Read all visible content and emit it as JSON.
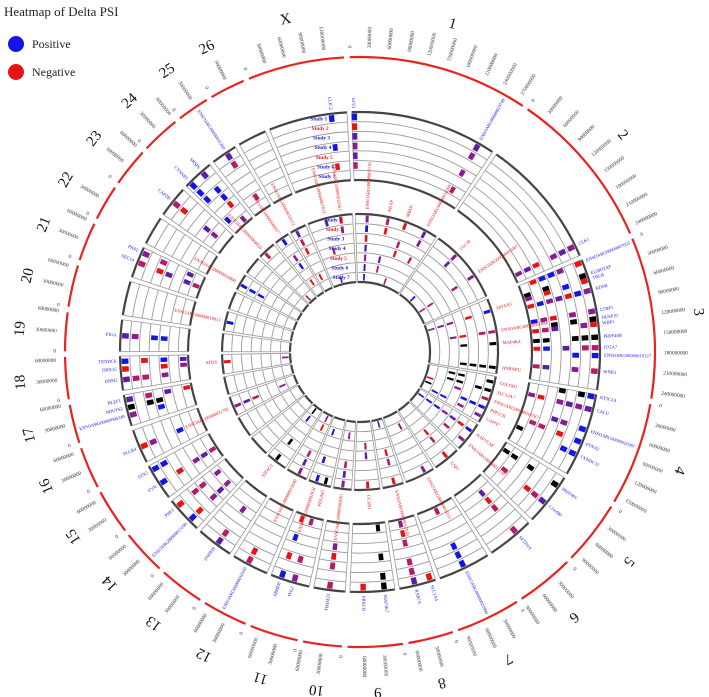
{
  "chart_data": {
    "type": "heatmap",
    "title": "Heatmap of Delta PSI",
    "legend": {
      "placement": "top-left",
      "entries": [
        {
          "label": "Positive",
          "color": "#1414e6"
        },
        {
          "label": "Negative",
          "color": "#e61414"
        }
      ]
    },
    "colors": {
      "ideogram": "#e8231f",
      "positive": "#1414e6",
      "negative": "#e61414",
      "mixed": "#8a1c8f"
    },
    "chromosomes": [
      {
        "name": "1",
        "length": 280000000,
        "ticks": [
          "0",
          "30000000",
          "60000000",
          "90000000",
          "120000000",
          "150000000",
          "180000000",
          "210000000",
          "240000000",
          "270000000"
        ]
      },
      {
        "name": "2",
        "length": 250000000,
        "ticks": [
          "0",
          "30000000",
          "60000000",
          "90000000",
          "120000000",
          "150000000",
          "180000000",
          "210000000",
          "240000000"
        ]
      },
      {
        "name": "3",
        "length": 250000000,
        "ticks": [
          "0",
          "30000000",
          "60000000",
          "90000000",
          "120000000",
          "150000000",
          "180000000",
          "210000000",
          "240000000"
        ]
      },
      {
        "name": "4",
        "length": 160000000,
        "ticks": [
          "0",
          "30000000",
          "60000000",
          "90000000",
          "120000000",
          "150000000"
        ]
      },
      {
        "name": "5",
        "length": 100000000,
        "ticks": [
          "0",
          "30000000",
          "60000000",
          "90000000"
        ]
      },
      {
        "name": "6",
        "length": 90000000,
        "ticks": [
          "0",
          "30000000",
          "60000000",
          "90000000"
        ]
      },
      {
        "name": "7",
        "length": 100000000,
        "ticks": [
          "0",
          "30000000",
          "60000000",
          "90000000"
        ]
      },
      {
        "name": "8",
        "length": 70000000,
        "ticks": [
          "0",
          "30000000",
          "60000000"
        ]
      },
      {
        "name": "9",
        "length": 85000000,
        "ticks": [
          "0",
          "30000000",
          "60000000"
        ]
      },
      {
        "name": "10",
        "length": 60000000,
        "ticks": [
          "0",
          "30000000",
          "60000000"
        ]
      },
      {
        "name": "11",
        "length": 75000000,
        "ticks": [
          "0",
          "30000000",
          "60000000"
        ]
      },
      {
        "name": "12",
        "length": 70000000,
        "ticks": [
          "0",
          "30000000",
          "60000000"
        ]
      },
      {
        "name": "13",
        "length": 70000000,
        "ticks": [
          "0",
          "30000000",
          "60000000"
        ]
      },
      {
        "name": "14",
        "length": 70000000,
        "ticks": [
          "0",
          "30000000",
          "60000000"
        ]
      },
      {
        "name": "15",
        "length": 70000000,
        "ticks": [
          "0",
          "30000000",
          "60000000"
        ]
      },
      {
        "name": "16",
        "length": 65000000,
        "ticks": [
          "0",
          "30000000",
          "60000000"
        ]
      },
      {
        "name": "17",
        "length": 60000000,
        "ticks": [
          "0",
          "30000000",
          "60000000"
        ]
      },
      {
        "name": "18",
        "length": 65000000,
        "ticks": [
          "0",
          "30000000",
          "60000000"
        ]
      },
      {
        "name": "19",
        "length": 60000000,
        "ticks": [
          "0",
          "30000000",
          "60000000"
        ]
      },
      {
        "name": "20",
        "length": 65000000,
        "ticks": [
          "0",
          "30000000",
          "60000000"
        ]
      },
      {
        "name": "21",
        "length": 60000000,
        "ticks": [
          "0",
          "30000000",
          "60000000"
        ]
      },
      {
        "name": "22",
        "length": 55000000,
        "ticks": [
          "0",
          "30000000"
        ]
      },
      {
        "name": "23",
        "length": 60000000,
        "ticks": [
          "0",
          "30000000",
          "60000000"
        ]
      },
      {
        "name": "24",
        "length": 60000000,
        "ticks": [
          "0",
          "30000000",
          "60000000"
        ]
      },
      {
        "name": "25",
        "length": 50000000,
        "ticks": [
          "0",
          "30000000"
        ]
      },
      {
        "name": "26",
        "length": 55000000,
        "ticks": [
          "0",
          "30000000"
        ]
      },
      {
        "name": "X",
        "length": 150000000,
        "ticks": [
          "0",
          "30000000",
          "60000000",
          "90000000",
          "120000000"
        ]
      }
    ],
    "tracks": [
      "Study 1",
      "Study 2",
      "Study 3",
      "Study 4",
      "Study 5",
      "Study 6",
      "Study 7"
    ],
    "track_label_colors": [
      "#1414e6",
      "#e61414",
      "#1414e6",
      "#1414e6",
      "#e61414",
      "#1414e6",
      "#1414e6"
    ],
    "outer_ring_genes": [
      {
        "chr": "X",
        "pos": 120000000,
        "label": "CLIC2"
      },
      {
        "chr": "1",
        "pos": 5000000,
        "label": "ULP1"
      },
      {
        "chr": "1",
        "pos": 250000000,
        "label": "ENSOARG00000019749"
      },
      {
        "chr": "2",
        "pos": 230000000,
        "label": "CLK1"
      },
      {
        "chr": "3",
        "pos": 5000000,
        "label": "ENSOARG00000007053"
      },
      {
        "chr": "3",
        "pos": 30000000,
        "label": "ELMO2AP"
      },
      {
        "chr": "3",
        "pos": 40000000,
        "label": "TBCB"
      },
      {
        "chr": "3",
        "pos": 60000000,
        "label": "KDSR"
      },
      {
        "chr": "3",
        "pos": 100000000,
        "label": "LTBP1"
      },
      {
        "chr": "3",
        "pos": 115000000,
        "label": "DUSP10"
      },
      {
        "chr": "3",
        "pos": 125000000,
        "label": "WBP1"
      },
      {
        "chr": "3",
        "pos": 150000000,
        "label": "PRPF40B"
      },
      {
        "chr": "3",
        "pos": 170000000,
        "label": "ITGA7"
      },
      {
        "chr": "3",
        "pos": 185000000,
        "label": "ENSOARG00000018127"
      },
      {
        "chr": "3",
        "pos": 215000000,
        "label": "WNK1"
      },
      {
        "chr": "4",
        "pos": 5000000,
        "label": "NT5C2A"
      },
      {
        "chr": "4",
        "pos": 30000000,
        "label": "CALU"
      },
      {
        "chr": "4",
        "pos": 70000000,
        "label": "ENSOARG00000020367"
      },
      {
        "chr": "4",
        "pos": 95000000,
        "label": "PTNA2"
      },
      {
        "chr": "4",
        "pos": 120000000,
        "label": "TXNDC12"
      },
      {
        "chr": "5",
        "pos": 20000000,
        "label": "PRPF40C"
      },
      {
        "chr": "5",
        "pos": 60000000,
        "label": "C1orf80"
      },
      {
        "chr": "6",
        "pos": 30000000,
        "label": "SETD1A"
      },
      {
        "chr": "7",
        "pos": 50000000,
        "label": "ENSOARG00000021990"
      },
      {
        "chr": "8",
        "pos": 10000000,
        "label": "SLC1A4"
      },
      {
        "chr": "8",
        "pos": 40000000,
        "label": "RAB7A"
      },
      {
        "chr": "9",
        "pos": 20000000,
        "label": "MAP3K7"
      },
      {
        "chr": "9",
        "pos": 60000000,
        "label": "PRKCB"
      },
      {
        "chr": "10",
        "pos": 30000000,
        "label": "TIMM23"
      },
      {
        "chr": "11",
        "pos": 30000000,
        "label": "TFG2"
      },
      {
        "chr": "11",
        "pos": 55000000,
        "label": "ABHD8"
      },
      {
        "chr": "12",
        "pos": 40000000,
        "label": "ENSOARG00000010160"
      },
      {
        "chr": "13",
        "pos": 30000000,
        "label": "ZNF839"
      },
      {
        "chr": "14",
        "pos": 20000000,
        "label": "ENSOARG00000015190"
      },
      {
        "chr": "14",
        "pos": 55000000,
        "label": "PHF3"
      },
      {
        "chr": "15",
        "pos": 30000000,
        "label": "FYN"
      },
      {
        "chr": "15",
        "pos": 60000000,
        "label": "STX2"
      },
      {
        "chr": "16",
        "pos": 30000000,
        "label": "PLCB4"
      },
      {
        "chr": "17",
        "pos": 20000000,
        "label": "ENSOARG00000006349"
      },
      {
        "chr": "17",
        "pos": 35000000,
        "label": "NDUFS2"
      },
      {
        "chr": "17",
        "pos": 50000000,
        "label": "BLZF1"
      },
      {
        "chr": "18",
        "pos": 20000000,
        "label": "DNM2"
      },
      {
        "chr": "18",
        "pos": 40000000,
        "label": "DHX15"
      },
      {
        "chr": "18",
        "pos": 55000000,
        "label": "TXNDC6"
      },
      {
        "chr": "19",
        "pos": 30000000,
        "label": "PIGA"
      },
      {
        "chr": "21",
        "pos": 30000000,
        "label": "SEC14"
      },
      {
        "chr": "21",
        "pos": 50000000,
        "label": "PKP2"
      },
      {
        "chr": "23",
        "pos": 30000000,
        "label": "CAPZB"
      },
      {
        "chr": "24",
        "pos": 10000000,
        "label": "CTNNB1"
      },
      {
        "chr": "24",
        "pos": 40000000,
        "label": "SRSF6"
      },
      {
        "chr": "25",
        "pos": 30000000,
        "label": "ENSOARG00000011260"
      }
    ],
    "inner_ring_genes": [
      {
        "chr": "1",
        "pos": 40000000,
        "label": "ENSOARG00000007110"
      },
      {
        "chr": "1",
        "pos": 110000000,
        "label": "NKAP"
      },
      {
        "chr": "1",
        "pos": 170000000,
        "label": "MBD5"
      },
      {
        "chr": "1",
        "pos": 240000000,
        "label": "ENSOARG00000018209"
      },
      {
        "chr": "2",
        "pos": 80000000,
        "label": "TTC39"
      },
      {
        "chr": "2",
        "pos": 170000000,
        "label": "ENSOARG00000001087"
      },
      {
        "chr": "3",
        "pos": 40000000,
        "label": "SPTAN1"
      },
      {
        "chr": "3",
        "pos": 110000000,
        "label": "ENSOARG00000007084"
      },
      {
        "chr": "3",
        "pos": 150000000,
        "label": "MAP4K4"
      },
      {
        "chr": "3",
        "pos": 230000000,
        "label": "HNRNPU"
      },
      {
        "chr": "4",
        "pos": 20000000,
        "label": "GOLGB1"
      },
      {
        "chr": "4",
        "pos": 50000000,
        "label": "SLC12A7"
      },
      {
        "chr": "4",
        "pos": 80000000,
        "label": "ENSOARG00000016767"
      },
      {
        "chr": "4",
        "pos": 110000000,
        "label": "PPP1CB"
      },
      {
        "chr": "4",
        "pos": 140000000,
        "label": "CAPN7"
      },
      {
        "chr": "5",
        "pos": 30000000,
        "label": "RAP1GAP"
      },
      {
        "chr": "5",
        "pos": 70000000,
        "label": "ENSOARG00000011130"
      },
      {
        "chr": "6",
        "pos": 40000000,
        "label": "USP7"
      },
      {
        "chr": "7",
        "pos": 30000000,
        "label": "ENSOARG00000016231"
      },
      {
        "chr": "8",
        "pos": 30000000,
        "label": "ENSOARG00000012920"
      },
      {
        "chr": "9",
        "pos": 40000000,
        "label": "CCAR1"
      },
      {
        "chr": "10",
        "pos": 30000000,
        "label": "ENSOARG00000003961"
      },
      {
        "chr": "11",
        "pos": 20000000,
        "label": "PDLIM5"
      },
      {
        "chr": "11",
        "pos": 50000000,
        "label": "ENSOARG00000002034"
      },
      {
        "chr": "12",
        "pos": 30000000,
        "label": "ENSOARG00000015840"
      },
      {
        "chr": "13",
        "pos": 40000000,
        "label": "EIF4G3"
      },
      {
        "chr": "16",
        "pos": 30000000,
        "label": "ENSOARG00000021781"
      },
      {
        "chr": "18",
        "pos": 40000000,
        "label": "ATRX"
      },
      {
        "chr": "20",
        "pos": 30000000,
        "label": "ENSOARG00000019013"
      },
      {
        "chr": "22",
        "pos": 20000000,
        "label": "ENSOARG00000010000"
      },
      {
        "chr": "24",
        "pos": 20000000,
        "label": "ENSOARG00000004020"
      },
      {
        "chr": "25",
        "pos": 25000000,
        "label": "ENSOARG00000000017"
      },
      {
        "chr": "26",
        "pos": 20000000,
        "label": "ENSOARG00000016512"
      },
      {
        "chr": "X",
        "pos": 60000000,
        "label": "ENSOARG00000007812"
      },
      {
        "chr": "X",
        "pos": 110000000,
        "label": "ENSOARG00000012063"
      }
    ]
  }
}
